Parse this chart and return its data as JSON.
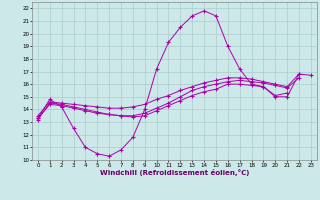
{
  "xlabel": "Windchill (Refroidissement éolien,°C)",
  "bg_color": "#cce8e8",
  "grid_color": "#aacccc",
  "line_color": "#aa00aa",
  "xlim": [
    -0.5,
    23.5
  ],
  "ylim": [
    10,
    22.5
  ],
  "xticks": [
    0,
    1,
    2,
    3,
    4,
    5,
    6,
    7,
    8,
    9,
    10,
    11,
    12,
    13,
    14,
    15,
    16,
    17,
    18,
    19,
    20,
    21,
    22,
    23
  ],
  "yticks": [
    10,
    11,
    12,
    13,
    14,
    15,
    16,
    17,
    18,
    19,
    20,
    21,
    22
  ],
  "line1_x": [
    0,
    1,
    2,
    3,
    4,
    5,
    6,
    7,
    8,
    9,
    10,
    11,
    12,
    13,
    14,
    15,
    16,
    17,
    18,
    19,
    20,
    21,
    22,
    23
  ],
  "line1_y": [
    13.3,
    14.8,
    14.2,
    12.5,
    11.0,
    10.5,
    10.3,
    10.8,
    11.8,
    14.0,
    17.2,
    19.3,
    20.5,
    21.4,
    21.8,
    21.4,
    19.0,
    17.2,
    16.0,
    15.8,
    15.1,
    15.3,
    null,
    null
  ],
  "line2_x": [
    0,
    1,
    2,
    3,
    4,
    5,
    6,
    7,
    8,
    9,
    10,
    11,
    12,
    13,
    14,
    15,
    16,
    17,
    18,
    19,
    20,
    21,
    22,
    23
  ],
  "line2_y": [
    13.5,
    14.6,
    14.5,
    14.4,
    14.3,
    14.2,
    14.1,
    14.1,
    14.2,
    14.4,
    14.8,
    15.1,
    15.5,
    15.8,
    16.1,
    16.3,
    16.5,
    16.5,
    16.4,
    16.2,
    16.0,
    15.8,
    16.8,
    null
  ],
  "line3_x": [
    0,
    1,
    2,
    3,
    4,
    5,
    6,
    7,
    8,
    9,
    10,
    11,
    12,
    13,
    14,
    15,
    16,
    17,
    18,
    19,
    20,
    21,
    22,
    23
  ],
  "line3_y": [
    13.3,
    14.4,
    14.3,
    14.1,
    13.9,
    13.7,
    13.6,
    13.5,
    13.5,
    13.7,
    14.1,
    14.5,
    15.0,
    15.5,
    15.8,
    16.0,
    16.2,
    16.3,
    16.2,
    16.1,
    15.9,
    15.7,
    16.5,
    null
  ],
  "line4_x": [
    0,
    1,
    2,
    3,
    4,
    5,
    6,
    7,
    8,
    9,
    10,
    11,
    12,
    13,
    14,
    15,
    16,
    17,
    18,
    19,
    20,
    21,
    22,
    23
  ],
  "line4_y": [
    13.2,
    14.5,
    14.4,
    14.2,
    14.0,
    13.8,
    13.6,
    13.5,
    13.4,
    13.5,
    13.9,
    14.3,
    14.7,
    15.1,
    15.4,
    15.6,
    16.0,
    16.0,
    15.9,
    15.8,
    15.0,
    15.0,
    16.8,
    16.7
  ]
}
